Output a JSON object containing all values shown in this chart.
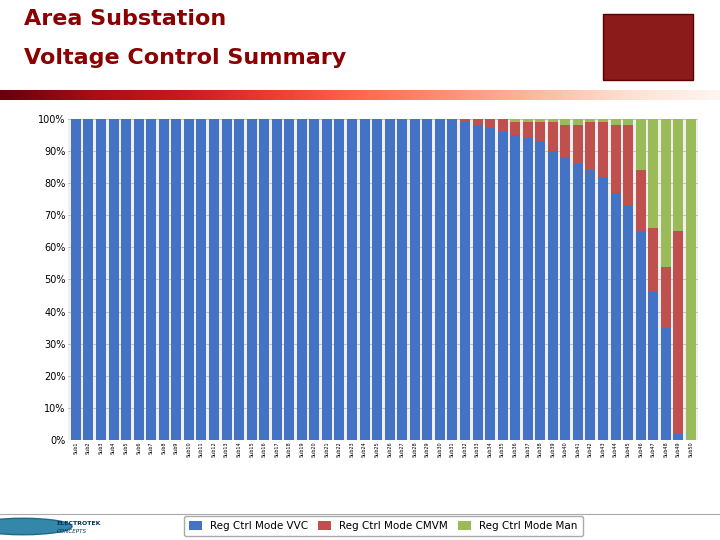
{
  "title_line1": "Area Substation",
  "title_line2": "Voltage Control Summary",
  "title_color": "#8B0000",
  "title_fontsize": 16,
  "bg_color": "#FFFFFF",
  "grid_color": "#BBBBBB",
  "legend_labels": [
    "Reg Ctrl Mode VVC",
    "Reg Ctrl Mode CMVM",
    "Reg Ctrl Mode Man"
  ],
  "colors": [
    "#4472C4",
    "#C0504D",
    "#9BBB59"
  ],
  "bar_width": 0.8,
  "ylim": [
    0,
    1.0
  ],
  "yticks": [
    0,
    0.1,
    0.2,
    0.3,
    0.4,
    0.5,
    0.6,
    0.7,
    0.8,
    0.9,
    1.0
  ],
  "ytick_labels": [
    "0%",
    "10%",
    "20%",
    "30%",
    "40%",
    "50%",
    "60%",
    "70%",
    "80%",
    "90%",
    "100%"
  ],
  "vvc": [
    1.0,
    1.0,
    1.0,
    1.0,
    1.0,
    1.0,
    1.0,
    1.0,
    1.0,
    1.0,
    1.0,
    1.0,
    1.0,
    1.0,
    1.0,
    1.0,
    1.0,
    1.0,
    1.0,
    1.0,
    1.0,
    1.0,
    1.0,
    1.0,
    1.0,
    1.0,
    1.0,
    1.0,
    1.0,
    1.0,
    0.995,
    0.99,
    0.98,
    0.97,
    0.96,
    0.95,
    0.94,
    0.93,
    0.9,
    0.88,
    0.86,
    0.84,
    0.82,
    0.77,
    0.73,
    0.65,
    0.46,
    0.35,
    0.02,
    0.0
  ],
  "cmvm": [
    0.0,
    0.0,
    0.0,
    0.0,
    0.0,
    0.0,
    0.0,
    0.0,
    0.0,
    0.0,
    0.0,
    0.0,
    0.0,
    0.0,
    0.0,
    0.0,
    0.0,
    0.0,
    0.0,
    0.0,
    0.0,
    0.0,
    0.0,
    0.0,
    0.0,
    0.0,
    0.0,
    0.0,
    0.0,
    0.0,
    0.005,
    0.01,
    0.02,
    0.03,
    0.04,
    0.04,
    0.05,
    0.06,
    0.09,
    0.1,
    0.12,
    0.15,
    0.17,
    0.21,
    0.25,
    0.19,
    0.2,
    0.19,
    0.63,
    0.0
  ],
  "man": [
    0.0,
    0.0,
    0.0,
    0.0,
    0.0,
    0.0,
    0.0,
    0.0,
    0.0,
    0.0,
    0.0,
    0.0,
    0.0,
    0.0,
    0.0,
    0.0,
    0.0,
    0.0,
    0.0,
    0.0,
    0.0,
    0.0,
    0.0,
    0.0,
    0.0,
    0.0,
    0.0,
    0.0,
    0.0,
    0.0,
    0.0,
    0.0,
    0.0,
    0.0,
    0.0,
    0.01,
    0.01,
    0.01,
    0.01,
    0.02,
    0.02,
    0.01,
    0.01,
    0.02,
    0.02,
    0.16,
    0.34,
    0.46,
    0.35,
    1.0
  ],
  "xlabels": [
    "Sub1",
    "Sub2",
    "Sub3",
    "Sub4",
    "Sub5",
    "Sub6",
    "Sub7",
    "Sub8",
    "Sub9",
    "Sub10",
    "Sub11",
    "Sub12",
    "Sub13",
    "Sub14",
    "Sub15",
    "Sub16",
    "Sub17",
    "Sub18",
    "Sub19",
    "Sub20",
    "Sub21",
    "Sub22",
    "Sub23",
    "Sub24",
    "Sub25",
    "Sub26",
    "Sub27",
    "Sub28",
    "Sub29",
    "Sub30",
    "Sub31",
    "Sub32",
    "Sub33",
    "Sub34",
    "Sub35",
    "Sub36",
    "Sub37",
    "Sub38",
    "Sub39",
    "Sub40",
    "Sub41",
    "Sub42",
    "Sub43",
    "Sub44",
    "Sub45",
    "Sub46",
    "Sub47",
    "Sub48",
    "Sub49",
    "Sub50"
  ]
}
